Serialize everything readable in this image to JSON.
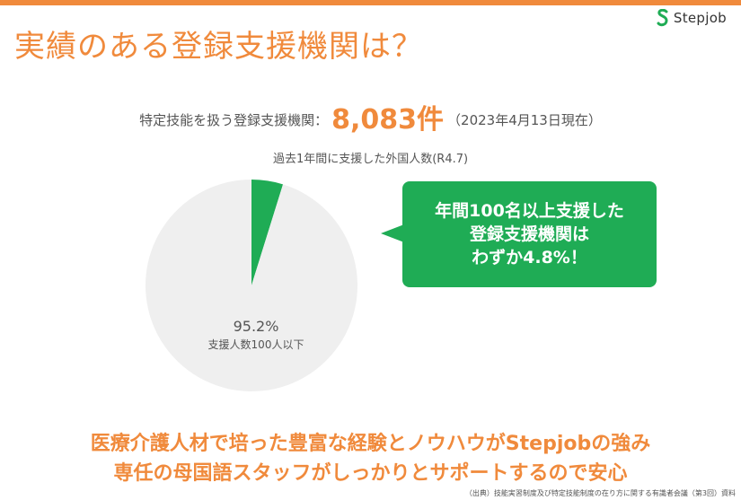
{
  "brand": {
    "logo_icon": "s-logo-icon",
    "name": "Stepjob",
    "color": "#1fac55"
  },
  "title": "実績のある登録支援機関は？",
  "count_line": {
    "prefix": "特定技能を扱う登録支援機関：",
    "count": "8,083件",
    "as_of": "（2023年4月13日現在）"
  },
  "callout": {
    "lines": [
      "年間100名以上支援した",
      "登録支援機関は",
      "わずか4.8%！"
    ],
    "color": "#1fac55"
  },
  "bottom_message": {
    "line1": "医療介護人材で培った豊富な経験とノウハウがStepjobの強み",
    "line2": "専任の母国語スタッフがしっかりとサポートするので安心"
  },
  "source": "（出典）技能実習制度及び特定技能制度の在り方に関する有識者会議（第3回）資料",
  "colors": {
    "accent": "#f08a3c",
    "pie_main": "#efefef",
    "pie_highlight": "#1fac55"
  },
  "chart_data": {
    "type": "pie",
    "title": "過去1年間に支援した外国人数(R4.7)",
    "slices": [
      {
        "label": "",
        "value": 4.8,
        "color": "#1fac55"
      },
      {
        "label": "支援人数100人以下",
        "value": 95.2,
        "display": "95.2%",
        "color": "#efefef"
      }
    ]
  }
}
